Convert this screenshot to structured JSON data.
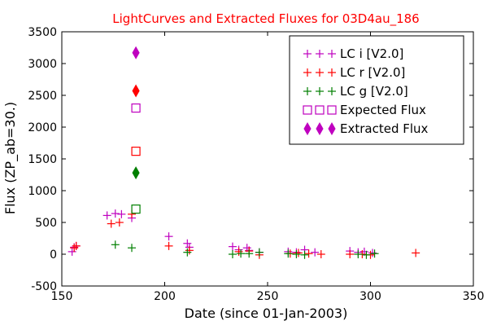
{
  "colors": {
    "title": "#ff0000",
    "lc_i": "#bf00bf",
    "lc_r": "#ff0000",
    "lc_g": "#007f00",
    "expected": "#bf00bf",
    "extracted": "#bf00bf"
  },
  "chart_data": {
    "type": "scatter",
    "title": "LightCurves and Extracted Fluxes for 03D4au_186",
    "xlabel": "Date (since 01-Jan-2003)",
    "ylabel": "Flux (ZP_ab=30.)",
    "xlim": [
      150,
      350
    ],
    "ylim": [
      -500,
      3500
    ],
    "xticks": [
      150,
      200,
      250,
      300,
      350
    ],
    "yticks": [
      -500,
      0,
      500,
      1000,
      1500,
      2000,
      2500,
      3000,
      3500
    ],
    "grid": false,
    "legend_position": "top-right",
    "series": [
      {
        "name": "LC i [V2.0]",
        "marker": "plus",
        "color": "#bf00bf",
        "points": [
          [
            155,
            40
          ],
          [
            156,
            110
          ],
          [
            157,
            130
          ],
          [
            172,
            610
          ],
          [
            176,
            640
          ],
          [
            179,
            630
          ],
          [
            184,
            570
          ],
          [
            202,
            280
          ],
          [
            211,
            170
          ],
          [
            212,
            110
          ],
          [
            233,
            120
          ],
          [
            236,
            70
          ],
          [
            240,
            100
          ],
          [
            241,
            60
          ],
          [
            246,
            30
          ],
          [
            260,
            40
          ],
          [
            264,
            30
          ],
          [
            268,
            70
          ],
          [
            273,
            30
          ],
          [
            290,
            50
          ],
          [
            294,
            30
          ],
          [
            297,
            40
          ],
          [
            301,
            20
          ]
        ]
      },
      {
        "name": "LC r [V2.0]",
        "marker": "plus",
        "color": "#ff0000",
        "points": [
          [
            156,
            100
          ],
          [
            157,
            130
          ],
          [
            174,
            480
          ],
          [
            178,
            500
          ],
          [
            184,
            630
          ],
          [
            202,
            130
          ],
          [
            212,
            60
          ],
          [
            236,
            40
          ],
          [
            241,
            50
          ],
          [
            246,
            -10
          ],
          [
            261,
            10
          ],
          [
            265,
            20
          ],
          [
            270,
            10
          ],
          [
            276,
            0
          ],
          [
            290,
            0
          ],
          [
            296,
            0
          ],
          [
            300,
            -10
          ],
          [
            322,
            20
          ]
        ]
      },
      {
        "name": "LC g [V2.0]",
        "marker": "plus",
        "color": "#007f00",
        "points": [
          [
            176,
            150
          ],
          [
            184,
            100
          ],
          [
            211,
            30
          ],
          [
            233,
            0
          ],
          [
            237,
            10
          ],
          [
            241,
            10
          ],
          [
            246,
            30
          ],
          [
            260,
            10
          ],
          [
            264,
            0
          ],
          [
            268,
            -10
          ],
          [
            294,
            0
          ],
          [
            298,
            -10
          ],
          [
            302,
            10
          ]
        ]
      },
      {
        "name": "Expected Flux",
        "marker": "square-open",
        "color_by_band": true,
        "points": [
          {
            "x": 186,
            "y": 2300,
            "band": "i"
          },
          {
            "x": 186,
            "y": 1620,
            "band": "r"
          },
          {
            "x": 186,
            "y": 710,
            "band": "g"
          }
        ]
      },
      {
        "name": "Extracted Flux",
        "marker": "diamond-filled",
        "color_by_band": true,
        "points": [
          {
            "x": 186,
            "y": 3170,
            "band": "i"
          },
          {
            "x": 186,
            "y": 2570,
            "band": "r"
          },
          {
            "x": 186,
            "y": 1280,
            "band": "g"
          }
        ]
      }
    ]
  }
}
